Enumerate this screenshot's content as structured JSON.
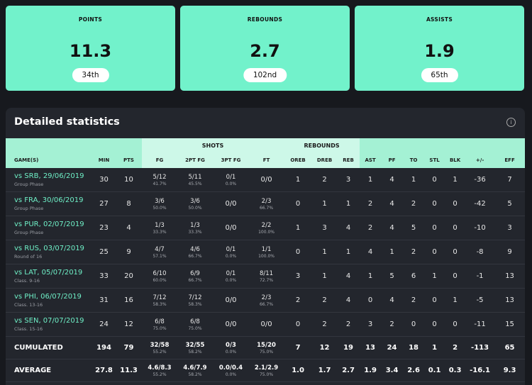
{
  "cards": [
    {
      "label": "POINTS",
      "value": "11.3",
      "rank": "34th"
    },
    {
      "label": "REBOUNDS",
      "value": "2.7",
      "rank": "102nd"
    },
    {
      "label": "ASSISTS",
      "value": "1.9",
      "rank": "65th"
    }
  ],
  "panel": {
    "title": "Detailed statistics"
  },
  "table": {
    "groups": [
      "SHOTS",
      "REBOUNDS"
    ],
    "columns": [
      "GAME(S)",
      "MIN",
      "PTS",
      "FG",
      "2PT FG",
      "3PT FG",
      "FT",
      "OREB",
      "DREB",
      "REB",
      "AST",
      "PF",
      "TO",
      "STL",
      "BLK",
      "+/-",
      "EFF"
    ],
    "rows": [
      {
        "game": "vs SRB, 29/06/2019",
        "phase": "Group Phase",
        "cells": [
          "30",
          "10",
          [
            "5/12",
            "41.7%"
          ],
          [
            "5/11",
            "45.5%"
          ],
          [
            "0/1",
            "0.0%"
          ],
          "0/0",
          "1",
          "2",
          "3",
          "1",
          "4",
          "1",
          "0",
          "1",
          "-36",
          "7"
        ]
      },
      {
        "game": "vs FRA, 30/06/2019",
        "phase": "Group Phase",
        "cells": [
          "27",
          "8",
          [
            "3/6",
            "50.0%"
          ],
          [
            "3/6",
            "50.0%"
          ],
          "0/0",
          [
            "2/3",
            "66.7%"
          ],
          "0",
          "1",
          "1",
          "2",
          "4",
          "2",
          "0",
          "0",
          "-42",
          "5"
        ]
      },
      {
        "game": "vs PUR, 02/07/2019",
        "phase": "Group Phase",
        "cells": [
          "23",
          "4",
          [
            "1/3",
            "33.3%"
          ],
          [
            "1/3",
            "33.3%"
          ],
          "0/0",
          [
            "2/2",
            "100.0%"
          ],
          "1",
          "3",
          "4",
          "2",
          "4",
          "5",
          "0",
          "0",
          "-10",
          "3"
        ]
      },
      {
        "game": "vs RUS, 03/07/2019",
        "phase": "Round of 16",
        "cells": [
          "25",
          "9",
          [
            "4/7",
            "57.1%"
          ],
          [
            "4/6",
            "66.7%"
          ],
          [
            "0/1",
            "0.0%"
          ],
          [
            "1/1",
            "100.0%"
          ],
          "0",
          "1",
          "1",
          "4",
          "1",
          "2",
          "0",
          "0",
          "-8",
          "9"
        ]
      },
      {
        "game": "vs LAT, 05/07/2019",
        "phase": "Class. 9-16",
        "cells": [
          "33",
          "20",
          [
            "6/10",
            "60.0%"
          ],
          [
            "6/9",
            "66.7%"
          ],
          [
            "0/1",
            "0.0%"
          ],
          [
            "8/11",
            "72.7%"
          ],
          "3",
          "1",
          "4",
          "1",
          "5",
          "6",
          "1",
          "0",
          "-1",
          "13"
        ]
      },
      {
        "game": "vs PHI, 06/07/2019",
        "phase": "Class. 13-16",
        "cells": [
          "31",
          "16",
          [
            "7/12",
            "58.3%"
          ],
          [
            "7/12",
            "58.3%"
          ],
          "0/0",
          [
            "2/3",
            "66.7%"
          ],
          "2",
          "2",
          "4",
          "0",
          "4",
          "2",
          "0",
          "1",
          "-5",
          "13"
        ]
      },
      {
        "game": "vs SEN, 07/07/2019",
        "phase": "Class. 15-16",
        "cells": [
          "24",
          "12",
          [
            "6/8",
            "75.0%"
          ],
          [
            "6/8",
            "75.0%"
          ],
          "0/0",
          "0/0",
          "0",
          "2",
          "2",
          "3",
          "2",
          "0",
          "0",
          "0",
          "-11",
          "15"
        ]
      }
    ],
    "totals": [
      {
        "label": "CUMULATED",
        "cells": [
          "194",
          "79",
          [
            "32/58",
            "55.2%"
          ],
          [
            "32/55",
            "58.2%"
          ],
          [
            "0/3",
            "0.0%"
          ],
          [
            "15/20",
            "75.0%"
          ],
          "7",
          "12",
          "19",
          "13",
          "24",
          "18",
          "1",
          "2",
          "-113",
          "65"
        ]
      },
      {
        "label": "AVERAGE",
        "cells": [
          "27.8",
          "11.3",
          [
            "4.6/8.3",
            "55.2%"
          ],
          [
            "4.6/7.9",
            "58.2%"
          ],
          [
            "0.0/0.4",
            "0.0%"
          ],
          [
            "2.1/2.9",
            "75.0%"
          ],
          "1.0",
          "1.7",
          "2.7",
          "1.9",
          "3.4",
          "2.6",
          "0.1",
          "0.3",
          "-16.1",
          "9.3"
        ]
      }
    ]
  }
}
